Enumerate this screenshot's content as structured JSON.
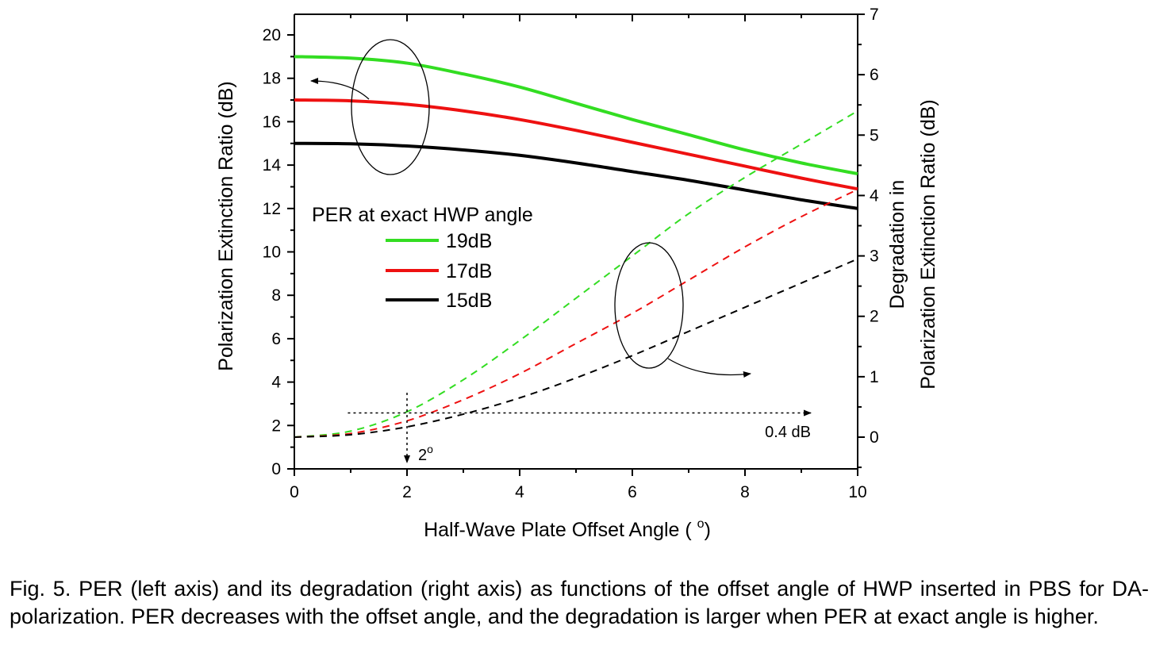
{
  "chart_data": {
    "type": "line",
    "xlabel": "Half-Wave Plate Offset Angle ( ",
    "xlabel_sup": "o",
    "xlabel_end": ")",
    "ylabel": "Polarization Extinction Ratio (dB)",
    "y2label_line1": "Degradation in",
    "y2label_line2": "Polarization Extinction Ratio (dB)",
    "xlim": [
      0,
      10
    ],
    "ylim": [
      0,
      21
    ],
    "y2lim": [
      -0.5,
      7
    ],
    "x_ticks": [
      0,
      2,
      4,
      6,
      8,
      10
    ],
    "y_ticks": [
      0,
      2,
      4,
      6,
      8,
      10,
      12,
      14,
      16,
      18,
      20
    ],
    "y2_ticks": [
      0,
      1,
      2,
      3,
      4,
      5,
      6,
      7
    ],
    "grid": false,
    "legend": {
      "title": "PER at exact HWP angle",
      "entries": [
        "19dB",
        "17dB",
        "15dB"
      ],
      "placement": "center-left"
    },
    "x": [
      0,
      1,
      2,
      3,
      4,
      5,
      6,
      7,
      8,
      9,
      10
    ],
    "series": [
      {
        "name": "19dB",
        "axis": "left",
        "style": "solid",
        "color": "#33dd22",
        "values": [
          19.0,
          18.93,
          18.7,
          18.2,
          17.6,
          16.85,
          16.1,
          15.4,
          14.7,
          14.1,
          13.6
        ]
      },
      {
        "name": "17dB",
        "axis": "left",
        "style": "solid",
        "color": "#ee1111",
        "values": [
          17.0,
          16.96,
          16.8,
          16.5,
          16.1,
          15.6,
          15.05,
          14.5,
          13.95,
          13.4,
          12.9
        ]
      },
      {
        "name": "15dB",
        "axis": "left",
        "style": "solid",
        "color": "#000000",
        "values": [
          15.0,
          14.98,
          14.88,
          14.7,
          14.45,
          14.1,
          13.7,
          13.3,
          12.85,
          12.4,
          12.0
        ]
      },
      {
        "name": "19dB",
        "axis": "right",
        "style": "dashed",
        "color": "#33dd22",
        "values": [
          0.0,
          0.1,
          0.42,
          0.95,
          1.6,
          2.3,
          3.0,
          3.7,
          4.3,
          4.85,
          5.4
        ]
      },
      {
        "name": "17dB",
        "axis": "right",
        "style": "dashed",
        "color": "#ee1111",
        "values": [
          0.0,
          0.06,
          0.27,
          0.62,
          1.05,
          1.55,
          2.05,
          2.6,
          3.15,
          3.65,
          4.1
        ]
      },
      {
        "name": "15dB",
        "axis": "right",
        "style": "dashed",
        "color": "#000000",
        "values": [
          0.0,
          0.04,
          0.17,
          0.38,
          0.65,
          0.98,
          1.35,
          1.75,
          2.15,
          2.55,
          2.95
        ]
      }
    ],
    "annotations": {
      "threshold_label": "0.4 dB",
      "threshold_value": 0.4,
      "angle_label": "2",
      "angle_label_sup": "o",
      "angle_value": 2
    }
  },
  "caption": "Fig. 5. PER (left axis) and its degradation (right axis) as functions of the offset angle of HWP inserted in PBS for DA-polarization. PER decreases with the offset angle, and the degradation is larger when PER at exact angle is higher."
}
